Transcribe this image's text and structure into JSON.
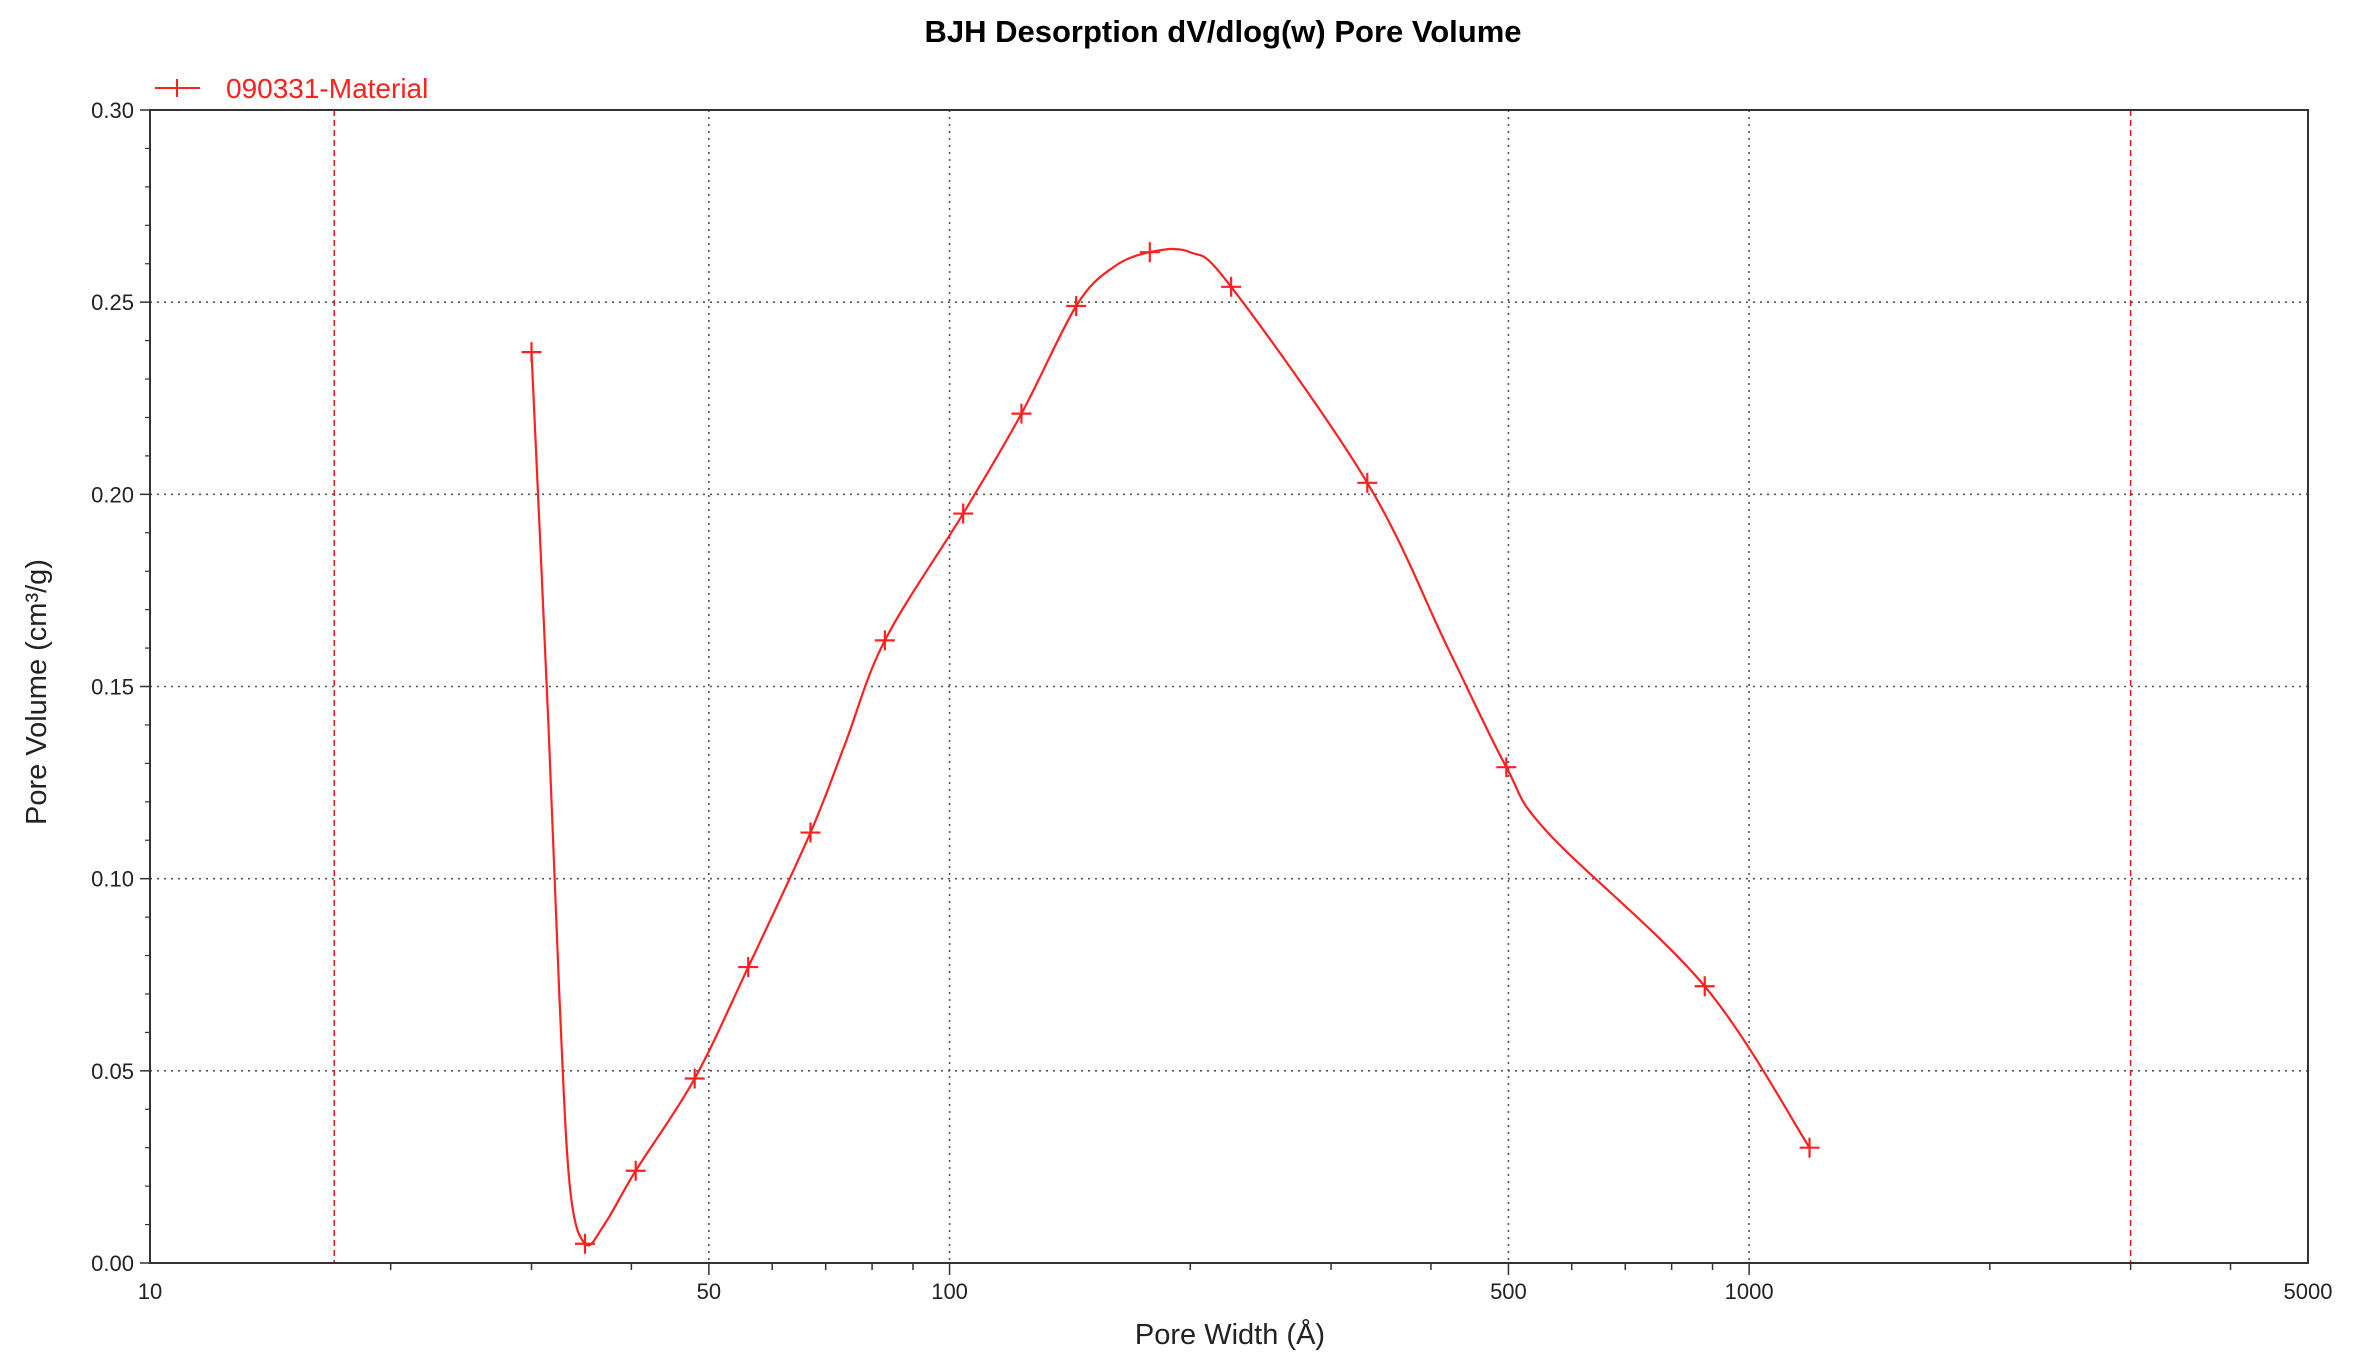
{
  "chart_data": {
    "type": "line",
    "title": "BJH Desorption dV/dlog(w) Pore Volume",
    "xlabel": "Pore Width (Å)",
    "ylabel": "Pore Volume (cm³/g)",
    "x_scale": "log",
    "xlim": [
      10,
      5000
    ],
    "ylim": [
      0,
      0.3
    ],
    "x_tick_values": [
      10,
      50,
      100,
      500,
      1000,
      5000
    ],
    "x_tick_labels": [
      "10",
      "50",
      "100",
      "500",
      "1000",
      "5000"
    ],
    "y_tick_values": [
      0.0,
      0.05,
      0.1,
      0.15,
      0.2,
      0.25,
      0.3
    ],
    "y_tick_labels": [
      "0.00",
      "0.05",
      "0.10",
      "0.15",
      "0.20",
      "0.25",
      "0.30"
    ],
    "grid": "dotted",
    "legend_position": "top-left",
    "limit_lines_x": [
      17,
      3000
    ],
    "series": [
      {
        "name": "090331-Material",
        "color": "#ff2020",
        "marker": "plus",
        "points": [
          [
            30,
            0.237
          ],
          [
            35,
            0.005
          ],
          [
            40.5,
            0.024
          ],
          [
            48,
            0.048
          ],
          [
            56,
            0.077
          ],
          [
            67,
            0.112
          ],
          [
            83,
            0.162
          ],
          [
            104,
            0.195
          ],
          [
            123,
            0.221
          ],
          [
            144,
            0.249
          ],
          [
            178,
            0.263
          ],
          [
            225,
            0.254
          ],
          [
            333,
            0.203
          ],
          [
            497,
            0.129
          ],
          [
            880,
            0.072
          ],
          [
            1190,
            0.03
          ]
        ],
        "curve": [
          [
            30,
            0.237
          ],
          [
            31.5,
            0.14
          ],
          [
            32.5,
            0.07
          ],
          [
            33.5,
            0.02
          ],
          [
            35,
            0.005
          ],
          [
            37,
            0.01
          ],
          [
            40.5,
            0.024
          ],
          [
            48,
            0.048
          ],
          [
            56,
            0.077
          ],
          [
            67,
            0.112
          ],
          [
            74,
            0.135
          ],
          [
            83,
            0.162
          ],
          [
            104,
            0.195
          ],
          [
            123,
            0.221
          ],
          [
            144,
            0.249
          ],
          [
            160,
            0.259
          ],
          [
            178,
            0.263
          ],
          [
            200,
            0.263
          ],
          [
            225,
            0.254
          ],
          [
            333,
            0.203
          ],
          [
            420,
            0.16
          ],
          [
            497,
            0.129
          ],
          [
            560,
            0.112
          ],
          [
            880,
            0.072
          ],
          [
            1190,
            0.03
          ]
        ]
      }
    ]
  }
}
